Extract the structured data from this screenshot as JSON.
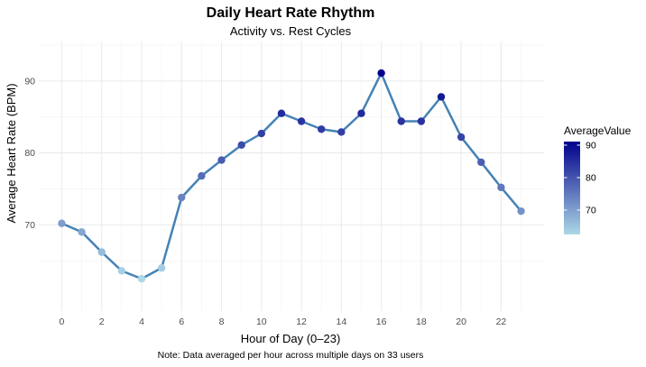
{
  "chart_data": {
    "type": "line",
    "title": "Daily Heart Rate Rhythm",
    "subtitle": "Activity vs. Rest Cycles",
    "xlabel": "Hour of Day (0–23)",
    "ylabel": "Average Heart Rate (BPM)",
    "caption": "Note: Data averaged per hour across multiple days on 33 users",
    "x": [
      0,
      1,
      2,
      3,
      4,
      5,
      6,
      7,
      8,
      9,
      10,
      11,
      12,
      13,
      14,
      15,
      16,
      17,
      18,
      19,
      20,
      21,
      22,
      23
    ],
    "values": [
      70.2,
      69.0,
      66.2,
      63.6,
      62.5,
      64.0,
      73.8,
      76.8,
      79.0,
      81.1,
      82.7,
      85.5,
      84.4,
      83.3,
      82.9,
      85.5,
      91.1,
      84.4,
      84.4,
      87.8,
      82.2,
      78.7,
      75.2,
      71.9
    ],
    "xticks": [
      0,
      2,
      4,
      6,
      8,
      10,
      12,
      14,
      16,
      18,
      20,
      22
    ],
    "yticks": [
      70,
      80,
      90
    ],
    "xlim": [
      -1.15,
      24.15
    ],
    "ylim": [
      58.0,
      95.5
    ],
    "grid": true,
    "line_color": "#4682b4",
    "legend": {
      "title": "AverageValue",
      "placement": "right",
      "ticks": [
        70,
        80,
        90
      ],
      "range": [
        62.5,
        91.1
      ],
      "color_low": "#add8e6",
      "color_high": "#00008b"
    }
  }
}
